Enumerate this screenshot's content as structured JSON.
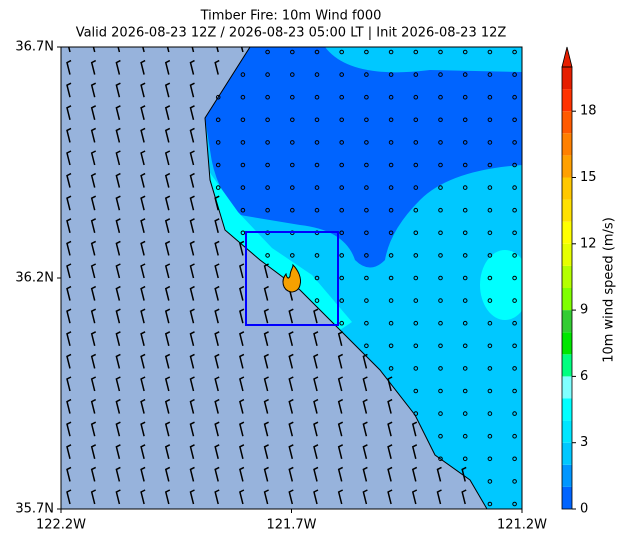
{
  "chart_data": {
    "type": "map",
    "title": "Timber Fire: 10m Wind f000",
    "subtitle": "Valid 2026-08-23 12Z / 2026-08-23 05:00 LT | Init 2026-08-23 12Z",
    "xlim": [
      -122.2,
      -121.2
    ],
    "ylim": [
      35.7,
      36.7
    ],
    "xticks": [
      {
        "value": -122.2,
        "label": "122.2W"
      },
      {
        "value": -121.7,
        "label": "121.7W"
      },
      {
        "value": -121.2,
        "label": "121.2W"
      }
    ],
    "yticks": [
      {
        "value": 35.7,
        "label": "35.7N"
      },
      {
        "value": 36.2,
        "label": "36.2N"
      },
      {
        "value": 36.7,
        "label": "36.7N"
      }
    ],
    "colorbar": {
      "label": "10m wind speed (m/s)",
      "clim": [
        0,
        20
      ],
      "yticks": [
        0,
        3,
        6,
        9,
        12,
        15,
        18
      ],
      "extend": "max",
      "colors": [
        "#0064ff",
        "#0096ff",
        "#00c8ff",
        "#00e6ff",
        "#00ffff",
        "#80ffff",
        "#00ff80",
        "#00e600",
        "#33cc33",
        "#80ff00",
        "#b4ff00",
        "#e6ff00",
        "#ffff00",
        "#ffe100",
        "#ffc800",
        "#ffa000",
        "#ff8000",
        "#ff5a00",
        "#ff3200",
        "#e61e00"
      ]
    }
  }
}
